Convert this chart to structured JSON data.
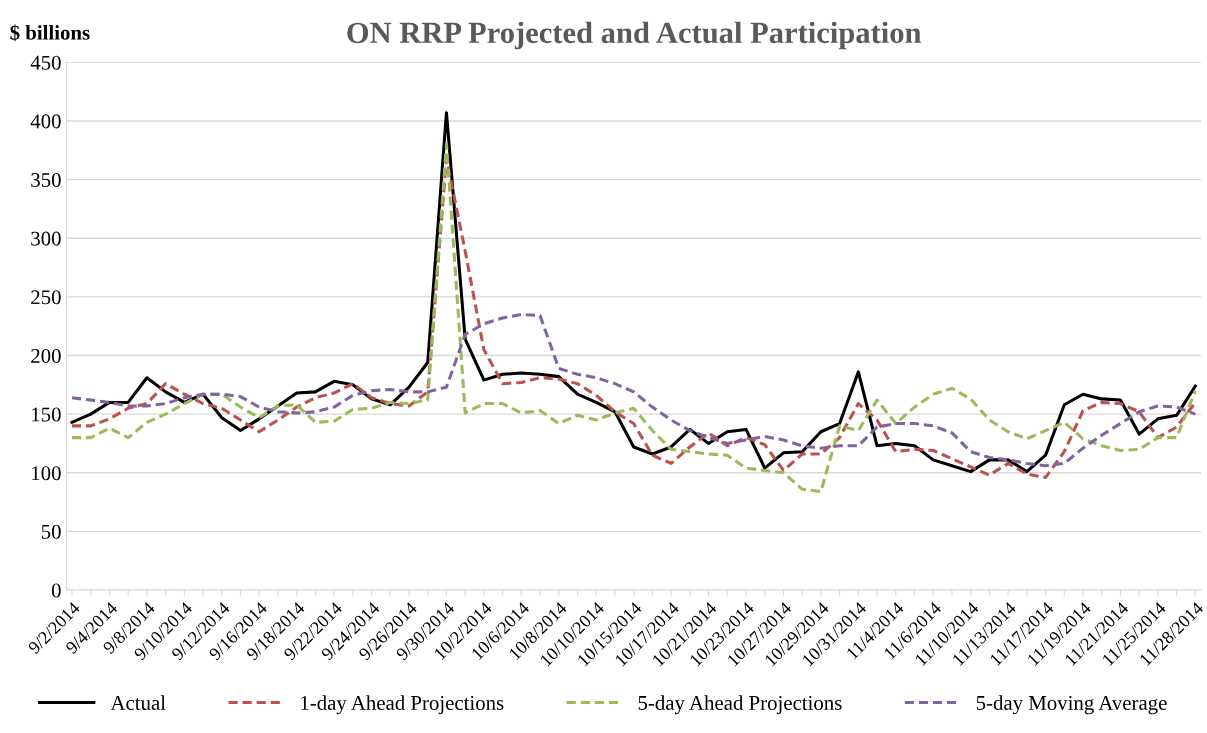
{
  "chart_data": {
    "type": "line",
    "title": "ON RRP Projected and Actual Participation",
    "ylabel": "$ billions",
    "categories": [
      "9/2/2014",
      null,
      "9/4/2014",
      null,
      "9/8/2014",
      null,
      "9/10/2014",
      null,
      "9/12/2014",
      null,
      "9/16/2014",
      null,
      "9/18/2014",
      null,
      "9/22/2014",
      null,
      "9/24/2014",
      null,
      "9/26/2014",
      null,
      "9/30/2014",
      null,
      "10/2/2014",
      null,
      "10/6/2014",
      null,
      "10/8/2014",
      null,
      "10/10/2014",
      null,
      "10/15/2014",
      null,
      "10/17/2014",
      null,
      "10/21/2014",
      null,
      "10/23/2014",
      null,
      "10/27/2014",
      null,
      "10/29/2014",
      null,
      "10/31/2014",
      null,
      "11/4/2014",
      null,
      "11/6/2014",
      null,
      "11/10/2014",
      null,
      "11/13/2014",
      null,
      "11/17/2014",
      null,
      "11/19/2014",
      null,
      "11/21/2014",
      null,
      "11/25/2014",
      null,
      "11/28/2014"
    ],
    "series": [
      {
        "name": "Actual",
        "color": "#000000",
        "line_style": "solid",
        "values": [
          143,
          150,
          160,
          160,
          181,
          169,
          160,
          167,
          147,
          136,
          146,
          157,
          168,
          169,
          178,
          175,
          163,
          158,
          173,
          194,
          407,
          214,
          179,
          184,
          185,
          184,
          182,
          167,
          160,
          152,
          122,
          116,
          122,
          137,
          125,
          135,
          137,
          104,
          117,
          118,
          135,
          142,
          186,
          123,
          125,
          123,
          111,
          106,
          101,
          111,
          111,
          101,
          115,
          158,
          167,
          163,
          162,
          133,
          146,
          149,
          174
        ]
      },
      {
        "name": "1-day Ahead Projections",
        "color": "#c0504d",
        "line_style": "dashed",
        "values": [
          140,
          140,
          146,
          155,
          159,
          176,
          167,
          159,
          155,
          145,
          135,
          145,
          156,
          164,
          168,
          176,
          164,
          159,
          157,
          169,
          368,
          289,
          205,
          176,
          177,
          181,
          180,
          176,
          166,
          152,
          142,
          115,
          108,
          122,
          134,
          123,
          130,
          124,
          102,
          116,
          116,
          130,
          159,
          145,
          118,
          120,
          119,
          112,
          105,
          98,
          108,
          99,
          96,
          118,
          153,
          160,
          159,
          152,
          130,
          139,
          160
        ]
      },
      {
        "name": "5-day Ahead Projections",
        "color": "#9bbb59",
        "line_style": "dashed",
        "values": [
          130,
          130,
          138,
          130,
          143,
          150,
          159,
          167,
          167,
          156,
          147,
          157,
          158,
          143,
          144,
          154,
          155,
          160,
          159,
          162,
          380,
          151,
          159,
          159,
          151,
          153,
          142,
          149,
          145,
          151,
          155,
          136,
          120,
          118,
          116,
          115,
          104,
          102,
          100,
          86,
          84,
          140,
          136,
          162,
          142,
          156,
          167,
          172,
          163,
          145,
          135,
          129,
          136,
          143,
          129,
          123,
          119,
          120,
          130,
          130,
          170
        ]
      },
      {
        "name": "5-day Moving Average",
        "color": "#8064a2",
        "line_style": "dashed",
        "values": [
          164,
          162,
          160,
          157,
          157,
          159,
          164,
          167,
          167,
          165,
          156,
          152,
          151,
          152,
          156,
          166,
          170,
          171,
          169,
          169,
          173,
          218,
          227,
          232,
          235,
          234,
          189,
          184,
          181,
          176,
          169,
          156,
          145,
          136,
          130,
          125,
          128,
          131,
          128,
          123,
          121,
          123,
          123,
          139,
          142,
          142,
          140,
          134,
          118,
          113,
          111,
          108,
          106,
          108,
          121,
          132,
          142,
          152,
          157,
          156,
          150
        ]
      }
    ],
    "ylim": [
      0,
      450
    ],
    "yticks": [
      0,
      50,
      100,
      150,
      200,
      250,
      300,
      350,
      400,
      450
    ],
    "grid": "y",
    "legend": "bottom",
    "marker": "none"
  }
}
